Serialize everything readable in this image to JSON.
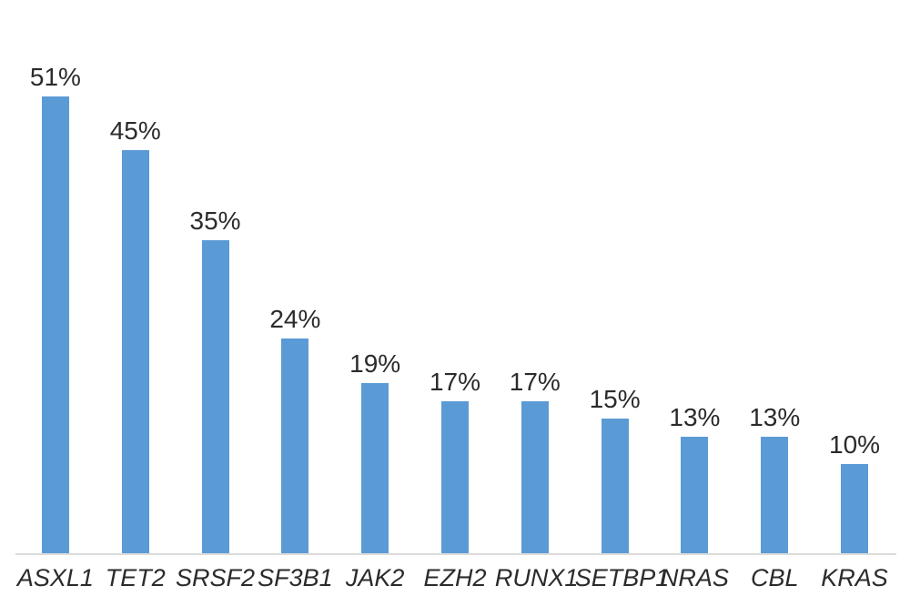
{
  "chart_data": {
    "type": "bar",
    "title": "",
    "xlabel": "",
    "ylabel": "",
    "categories": [
      "ASXL1",
      "TET2",
      "SRSF2",
      "SF3B1",
      "JAK2",
      "EZH2",
      "RUNX1",
      "SETBP1",
      "NRAS",
      "CBL",
      "KRAS"
    ],
    "values": [
      51,
      45,
      35,
      24,
      19,
      17,
      17,
      15,
      13,
      13,
      10
    ],
    "value_labels": [
      "51%",
      "45%",
      "35%",
      "24%",
      "19%",
      "17%",
      "17%",
      "15%",
      "13%",
      "13%",
      "10%"
    ],
    "ylim": [
      0,
      52
    ],
    "grid": false,
    "legend": false,
    "y_axis_visible": false,
    "bar_color": "#5b9bd5",
    "axis_line_color": "#dcdcdc",
    "label_color": "#2b2b2b"
  }
}
